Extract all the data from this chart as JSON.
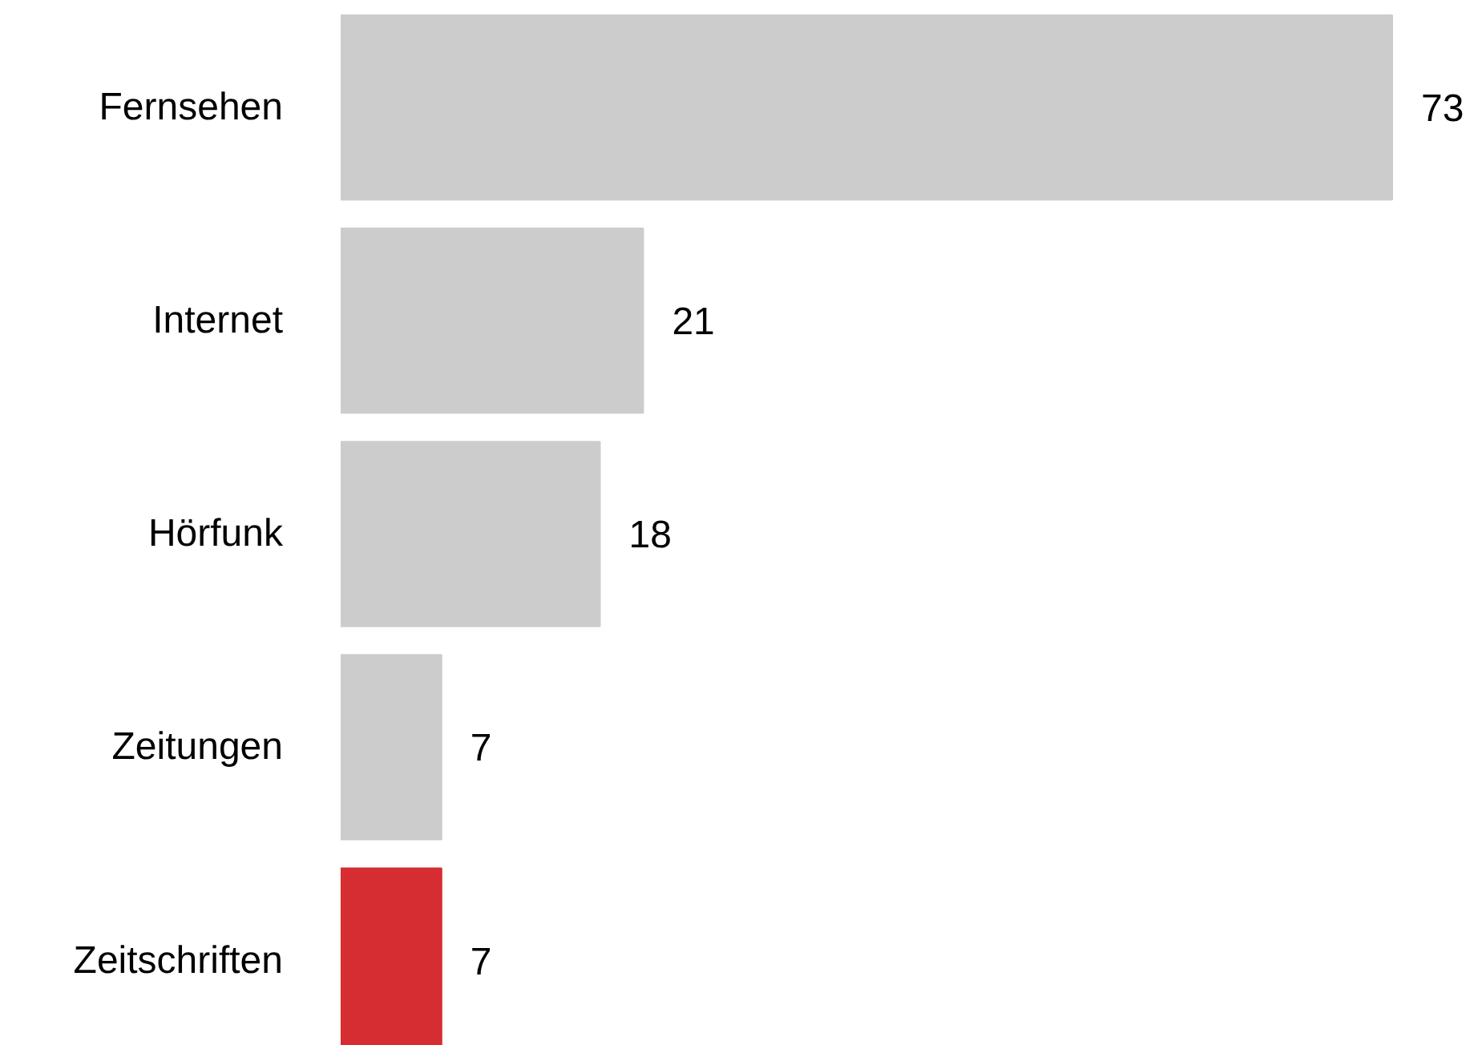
{
  "chart_data": {
    "type": "bar",
    "orientation": "horizontal",
    "categories": [
      "Fernsehen",
      "Internet",
      "Hörfunk",
      "Zeitungen",
      "Zeitschriften"
    ],
    "values": [
      73,
      21,
      18,
      7,
      7
    ],
    "colors": [
      "#cccccc",
      "#cccccc",
      "#cccccc",
      "#cccccc",
      "#d62d32"
    ],
    "data_labels": true,
    "grid": false
  }
}
